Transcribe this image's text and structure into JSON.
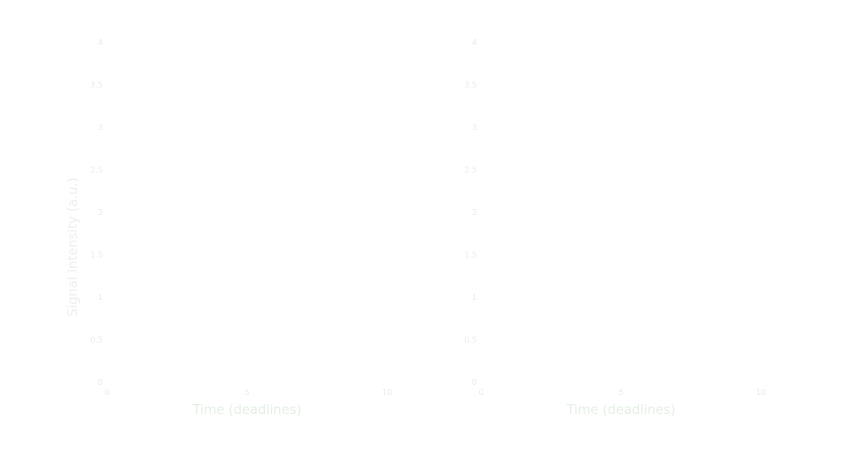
{
  "chart_data": [
    {
      "type": "line",
      "title": "",
      "xlabel": "Time (deadlines)",
      "ylabel": "Signal intensity (a.u.)",
      "xlim": [
        0,
        10
      ],
      "ylim": [
        0,
        4
      ],
      "x_ticks": [
        {
          "value": 0,
          "label": "0"
        },
        {
          "value": 5,
          "label": "5"
        },
        {
          "value": 10,
          "label": "10"
        }
      ],
      "y_ticks": [
        {
          "value": 0,
          "label": "0"
        },
        {
          "value": 0.5,
          "label": "0.5"
        },
        {
          "value": 1,
          "label": "1"
        },
        {
          "value": 1.5,
          "label": "1.5"
        },
        {
          "value": 2,
          "label": "2"
        },
        {
          "value": 2.5,
          "label": "2.5"
        },
        {
          "value": 3,
          "label": "3"
        },
        {
          "value": 3.5,
          "label": "3.5"
        },
        {
          "value": 4,
          "label": "4"
        }
      ],
      "series": [],
      "grid": false
    },
    {
      "type": "line",
      "title": "",
      "xlabel": "Time (deadlines)",
      "ylabel": "",
      "xlim": [
        0,
        10
      ],
      "ylim": [
        0,
        4
      ],
      "x_ticks": [
        {
          "value": 0,
          "label": "0"
        },
        {
          "value": 5,
          "label": "5"
        },
        {
          "value": 10,
          "label": "10"
        }
      ],
      "y_ticks": [
        {
          "value": 0,
          "label": "0"
        },
        {
          "value": 0.5,
          "label": "0.5"
        },
        {
          "value": 1,
          "label": "1"
        },
        {
          "value": 1.5,
          "label": "1.5"
        },
        {
          "value": 2,
          "label": "2"
        },
        {
          "value": 2.5,
          "label": "2.5"
        },
        {
          "value": 3,
          "label": "3"
        },
        {
          "value": 3.5,
          "label": "3.5"
        },
        {
          "value": 4,
          "label": "4"
        }
      ],
      "series": [],
      "grid": false
    }
  ]
}
